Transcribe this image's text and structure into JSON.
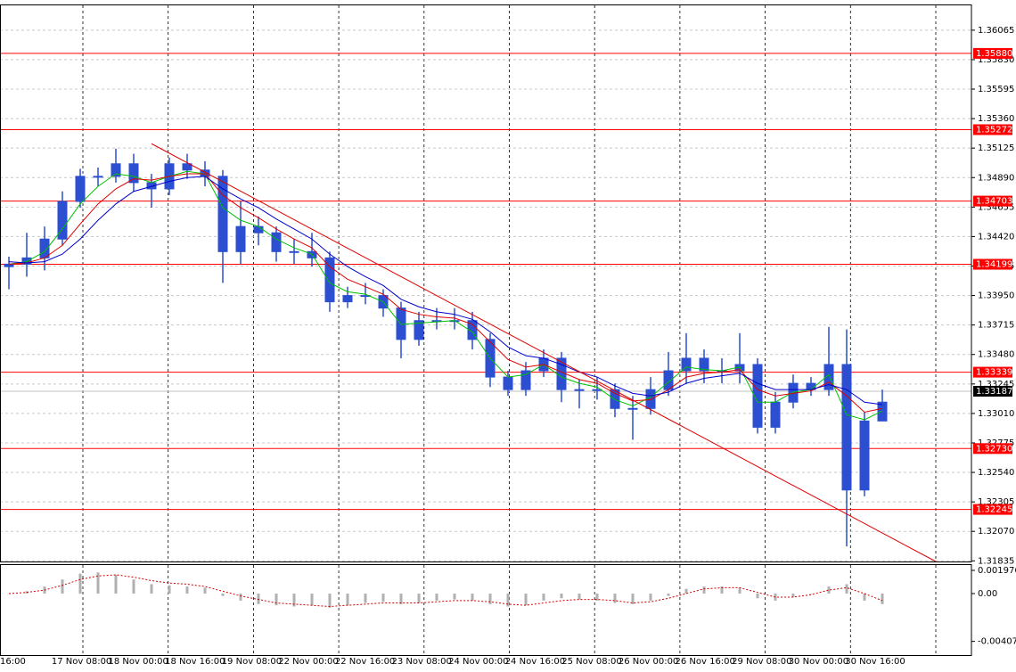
{
  "chart_data": [
    {
      "type": "candlestick",
      "open": [
        1.3418,
        1.342,
        1.3425,
        1.344,
        1.347,
        1.349,
        1.349,
        1.35,
        1.3485,
        1.348,
        1.35,
        1.3495,
        1.349,
        1.343,
        1.345,
        1.3445,
        1.343,
        1.343,
        1.3425,
        1.339,
        1.3395,
        1.3395,
        1.3385,
        1.336,
        1.3375,
        1.3375,
        1.3375,
        1.336,
        1.333,
        1.332,
        1.3335,
        1.3345,
        1.332,
        1.332,
        1.332,
        1.3305,
        1.3305,
        1.332,
        1.3335,
        1.3345,
        1.3335,
        1.3335,
        1.334,
        1.329,
        1.331,
        1.3325,
        1.332,
        1.334,
        1.324,
        1.3295
      ],
      "high": [
        1.3426,
        1.3445,
        1.345,
        1.3478,
        1.3496,
        1.3497,
        1.3512,
        1.3508,
        1.3492,
        1.3505,
        1.3508,
        1.3502,
        1.3495,
        1.347,
        1.3458,
        1.345,
        1.344,
        1.3445,
        1.343,
        1.3402,
        1.3405,
        1.34,
        1.339,
        1.3382,
        1.3385,
        1.3385,
        1.3382,
        1.3365,
        1.3335,
        1.3342,
        1.3352,
        1.335,
        1.3328,
        1.333,
        1.3325,
        1.3315,
        1.333,
        1.335,
        1.3365,
        1.3352,
        1.3345,
        1.3365,
        1.3345,
        1.3318,
        1.3332,
        1.333,
        1.337,
        1.3368,
        1.3302,
        1.332
      ],
      "low": [
        1.34,
        1.341,
        1.3415,
        1.3435,
        1.3465,
        1.3482,
        1.3485,
        1.3478,
        1.3465,
        1.3475,
        1.3488,
        1.3482,
        1.3405,
        1.342,
        1.3435,
        1.3422,
        1.342,
        1.3418,
        1.3382,
        1.3385,
        1.3388,
        1.3378,
        1.3345,
        1.3355,
        1.3368,
        1.3368,
        1.3352,
        1.3322,
        1.3315,
        1.3315,
        1.333,
        1.331,
        1.3305,
        1.3312,
        1.3298,
        1.328,
        1.33,
        1.3315,
        1.3325,
        1.3325,
        1.3325,
        1.3325,
        1.3285,
        1.3285,
        1.3305,
        1.3315,
        1.3315,
        1.3195,
        1.3235,
        1.3295
      ],
      "close": [
        1.342,
        1.3425,
        1.344,
        1.347,
        1.349,
        1.349,
        1.35,
        1.3485,
        1.348,
        1.35,
        1.3495,
        1.349,
        1.343,
        1.345,
        1.3445,
        1.343,
        1.343,
        1.3425,
        1.339,
        1.3395,
        1.3395,
        1.3385,
        1.336,
        1.3375,
        1.3375,
        1.3375,
        1.336,
        1.333,
        1.332,
        1.3335,
        1.3345,
        1.332,
        1.332,
        1.332,
        1.3305,
        1.3305,
        1.332,
        1.3335,
        1.3345,
        1.3335,
        1.3335,
        1.334,
        1.329,
        1.331,
        1.3325,
        1.332,
        1.334,
        1.324,
        1.3295,
        1.331
      ],
      "color": "#2b4fd0",
      "series": [
        {
          "color": "#00c000",
          "values": [
            1.342,
            1.3422,
            1.343,
            1.3448,
            1.3468,
            1.3482,
            1.3492,
            1.349,
            1.3485,
            1.349,
            1.3494,
            1.3492,
            1.3465,
            1.3455,
            1.345,
            1.344,
            1.3433,
            1.3428,
            1.3405,
            1.3398,
            1.3396,
            1.339,
            1.3372,
            1.3373,
            1.3374,
            1.3375,
            1.3366,
            1.3345,
            1.333,
            1.3332,
            1.334,
            1.333,
            1.3325,
            1.3322,
            1.3312,
            1.3307,
            1.3314,
            1.3326,
            1.3338,
            1.3336,
            1.3335,
            1.3338,
            1.331,
            1.331,
            1.3318,
            1.332,
            1.3332,
            1.33,
            1.3296,
            1.3303
          ]
        },
        {
          "color": "#e00000",
          "values": [
            1.342,
            1.3421,
            1.3425,
            1.3435,
            1.3452,
            1.3468,
            1.348,
            1.3488,
            1.3487,
            1.349,
            1.3492,
            1.3492,
            1.3475,
            1.3465,
            1.3457,
            1.3448,
            1.344,
            1.3433,
            1.3418,
            1.3408,
            1.3402,
            1.3396,
            1.3384,
            1.338,
            1.3378,
            1.3377,
            1.3372,
            1.3358,
            1.3344,
            1.3338,
            1.334,
            1.3334,
            1.3328,
            1.3325,
            1.3317,
            1.3311,
            1.3312,
            1.332,
            1.333,
            1.3333,
            1.3334,
            1.3336,
            1.332,
            1.3315,
            1.3317,
            1.3319,
            1.3326,
            1.3315,
            1.3302,
            1.3305
          ]
        },
        {
          "color": "#0000cc",
          "values": [
            1.3422,
            1.3421,
            1.3422,
            1.3428,
            1.344,
            1.3455,
            1.3468,
            1.3478,
            1.3482,
            1.3486,
            1.3489,
            1.349,
            1.348,
            1.3472,
            1.3465,
            1.3456,
            1.3448,
            1.344,
            1.3428,
            1.3418,
            1.341,
            1.3403,
            1.3392,
            1.3386,
            1.3382,
            1.338,
            1.3376,
            1.3366,
            1.3354,
            1.3347,
            1.3345,
            1.334,
            1.3334,
            1.333,
            1.3323,
            1.3317,
            1.3315,
            1.3318,
            1.3325,
            1.3329,
            1.3331,
            1.3333,
            1.3325,
            1.332,
            1.332,
            1.332,
            1.3324,
            1.332,
            1.331,
            1.3308
          ]
        }
      ],
      "trendline": {
        "x": [
          8,
          52
        ],
        "values": [
          1.3516,
          1.3183
        ],
        "color": "#e00000"
      },
      "levels": {
        "values": [
          1.3588,
          1.35272,
          1.34703,
          1.34199,
          1.33339,
          1.3273,
          1.32245
        ],
        "value_labels": [
          "1.35880",
          "1.35272",
          "1.34703",
          "1.34199",
          "1.33339",
          "1.32730",
          "1.32245"
        ],
        "color": "#ff0000"
      },
      "current_price": 1.33187,
      "ylim": [
        1.3183,
        1.3627
      ],
      "yticks": [
        1.36065,
        {
          "value": 1.3583,
          "label": "1.35830"
        },
        1.35595,
        {
          "value": 1.3536,
          "label": "1.35360"
        },
        1.35125,
        {
          "value": 1.3489,
          "label": "1.34890"
        },
        1.34655,
        {
          "value": 1.3442,
          "label": "1.34420"
        },
        1.34185,
        {
          "value": 1.3395,
          "label": "1.33950"
        },
        1.33715,
        {
          "value": 1.3348,
          "label": "1.33480"
        },
        1.33245,
        {
          "value": 1.3301,
          "label": "1.33010"
        },
        1.32775,
        {
          "value": 1.3254,
          "label": "1.32540"
        },
        1.32305,
        {
          "value": 1.3207,
          "label": "1.32070"
        },
        1.31835
      ],
      "grid": true,
      "x_labels": [
        "16:00",
        "17 Nov 08:00",
        "18 Nov 00:00",
        "18 Nov 16:00",
        "19 Nov 08:00",
        "22 Nov 00:00",
        "22 Nov 16:00",
        "23 Nov 08:00",
        "24 Nov 00:00",
        "24 Nov 16:00",
        "25 Nov 08:00",
        "26 Nov 00:00",
        "26 Nov 16:00",
        "29 Nov 08:00",
        "30 Nov 00:00",
        "30 Nov 16:00"
      ]
    },
    {
      "type": "histogram",
      "values": [
        0.0,
        0.0002,
        0.0006,
        0.0012,
        0.0017,
        0.0018,
        0.0016,
        0.0012,
        0.0008,
        0.0007,
        0.0006,
        0.0005,
        -0.0002,
        -0.0006,
        -0.0009,
        -0.001,
        -0.0011,
        -0.001,
        -0.0012,
        -0.001,
        -0.0008,
        -0.0007,
        -0.0009,
        -0.0008,
        -0.0006,
        -0.0005,
        -0.0006,
        -0.0009,
        -0.0011,
        -0.001,
        -0.0006,
        -0.0004,
        -0.0005,
        -0.0006,
        -0.0008,
        -0.0009,
        -0.0006,
        -0.0002,
        0.0004,
        0.0006,
        0.0006,
        0.0005,
        -0.0004,
        -0.0006,
        -0.0003,
        0.0,
        0.0006,
        0.0008,
        -0.0006,
        -0.0009
      ],
      "color": "#b0b0b0",
      "signal": {
        "color": "#d00000",
        "values": [
          0.0,
          0.0001,
          0.0003,
          0.0007,
          0.0012,
          0.0015,
          0.0016,
          0.0014,
          0.0011,
          0.0009,
          0.0008,
          0.0006,
          0.0002,
          -0.0002,
          -0.0005,
          -0.0008,
          -0.0009,
          -0.001,
          -0.0011,
          -0.001,
          -0.0009,
          -0.0008,
          -0.0008,
          -0.0008,
          -0.0007,
          -0.0006,
          -0.0006,
          -0.0007,
          -0.0009,
          -0.001,
          -0.0008,
          -0.0006,
          -0.0005,
          -0.0005,
          -0.0006,
          -0.0008,
          -0.0007,
          -0.0004,
          0.0,
          0.0004,
          0.0005,
          0.0005,
          0.0001,
          -0.0003,
          -0.0003,
          -0.0001,
          0.0003,
          0.0005,
          0.0,
          -0.0006
        ]
      },
      "ylim": [
        -0.00524,
        0.00243
      ],
      "yticks": [
        0.001976,
        {
          "value": 0,
          "label": "0.00"
        },
        -0.004074
      ]
    }
  ]
}
